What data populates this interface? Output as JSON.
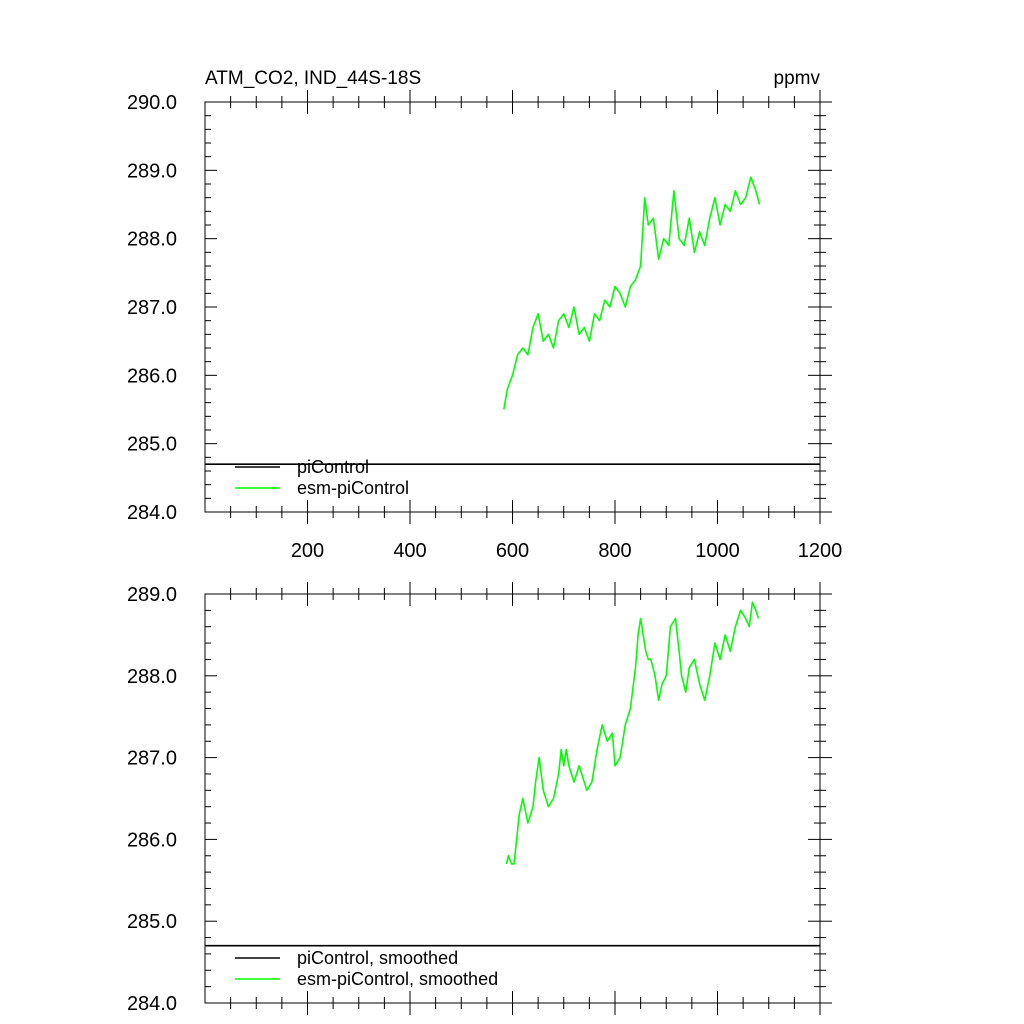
{
  "colors": {
    "background": "#ffffff",
    "axis": "#000000",
    "picontrol": "#000000",
    "esm_picontrol": "#00ff00"
  },
  "chart_data": [
    {
      "type": "line",
      "title": "ATM_CO2, IND_44S-18S",
      "units": "ppmv",
      "xlim": [
        0,
        1200
      ],
      "ylim": [
        284.0,
        290.0
      ],
      "x_ticks": [
        200,
        400,
        600,
        800,
        1000,
        1200
      ],
      "x_tick_labels": [
        "200",
        "400",
        "600",
        "800",
        "1000",
        "1200"
      ],
      "y_ticks": [
        284.0,
        285.0,
        286.0,
        287.0,
        288.0,
        289.0,
        290.0
      ],
      "y_tick_labels": [
        "284.0",
        "285.0",
        "286.0",
        "287.0",
        "288.0",
        "289.0",
        "290.0"
      ],
      "grid": false,
      "legend_position": "bottom-left",
      "series": [
        {
          "name": "piControl",
          "color": "#000000",
          "x": [
            0,
            1200
          ],
          "y": [
            284.7,
            284.7
          ]
        },
        {
          "name": "esm-piControl",
          "color": "#00ff00",
          "x": [
            583,
            590,
            600,
            610,
            620,
            630,
            640,
            650,
            660,
            670,
            680,
            690,
            700,
            710,
            720,
            730,
            740,
            750,
            760,
            770,
            780,
            790,
            800,
            810,
            820,
            830,
            840,
            850,
            858,
            865,
            875,
            885,
            895,
            905,
            915,
            925,
            935,
            945,
            955,
            965,
            975,
            985,
            995,
            1005,
            1015,
            1025,
            1035,
            1045,
            1055,
            1065,
            1075,
            1082
          ],
          "y": [
            285.5,
            285.8,
            286.0,
            286.3,
            286.4,
            286.3,
            286.7,
            286.9,
            286.5,
            286.6,
            286.4,
            286.8,
            286.9,
            286.7,
            287.0,
            286.6,
            286.7,
            286.5,
            286.9,
            286.8,
            287.1,
            287.0,
            287.3,
            287.2,
            287.0,
            287.3,
            287.4,
            287.6,
            288.6,
            288.2,
            288.3,
            287.7,
            288.0,
            287.9,
            288.7,
            288.0,
            287.9,
            288.3,
            287.8,
            288.1,
            287.9,
            288.3,
            288.6,
            288.2,
            288.5,
            288.4,
            288.7,
            288.5,
            288.6,
            288.9,
            288.7,
            288.5
          ]
        }
      ]
    },
    {
      "type": "line",
      "xlim": [
        0,
        1200
      ],
      "ylim": [
        284.0,
        289.0
      ],
      "y_ticks": [
        284.0,
        285.0,
        286.0,
        287.0,
        288.0,
        289.0
      ],
      "y_tick_labels": [
        "284.0",
        "285.0",
        "286.0",
        "287.0",
        "288.0",
        "289.0"
      ],
      "grid": false,
      "legend_position": "bottom-left",
      "series": [
        {
          "name": "piControl, smoothed",
          "color": "#000000",
          "x": [
            0,
            1200
          ],
          "y": [
            284.7,
            284.7
          ]
        },
        {
          "name": "esm-piControl, smoothed",
          "color": "#00ff00",
          "x": [
            588,
            592,
            598,
            603,
            608,
            613,
            620,
            630,
            640,
            645,
            652,
            660,
            670,
            680,
            690,
            695,
            700,
            705,
            710,
            720,
            730,
            740,
            745,
            755,
            765,
            775,
            785,
            795,
            800,
            810,
            820,
            830,
            840,
            845,
            850,
            860,
            865,
            870,
            878,
            885,
            892,
            900,
            908,
            918,
            925,
            930,
            938,
            945,
            955,
            965,
            975,
            985,
            995,
            1005,
            1015,
            1025,
            1035,
            1045,
            1055,
            1062,
            1068,
            1075,
            1080
          ],
          "y": [
            285.7,
            285.8,
            285.7,
            285.7,
            286.0,
            286.3,
            286.5,
            286.2,
            286.4,
            286.7,
            287.0,
            286.6,
            286.4,
            286.5,
            286.8,
            287.1,
            286.9,
            287.1,
            286.9,
            286.7,
            286.9,
            286.7,
            286.6,
            286.7,
            287.1,
            287.4,
            287.2,
            287.3,
            286.9,
            287.0,
            287.4,
            287.6,
            288.1,
            288.5,
            288.7,
            288.3,
            288.2,
            288.2,
            288.0,
            287.7,
            287.9,
            288.0,
            288.6,
            288.7,
            288.3,
            288.0,
            287.8,
            288.1,
            288.2,
            287.9,
            287.7,
            288.0,
            288.4,
            288.2,
            288.5,
            288.3,
            288.6,
            288.8,
            288.7,
            288.6,
            288.9,
            288.8,
            288.7
          ]
        }
      ]
    }
  ]
}
